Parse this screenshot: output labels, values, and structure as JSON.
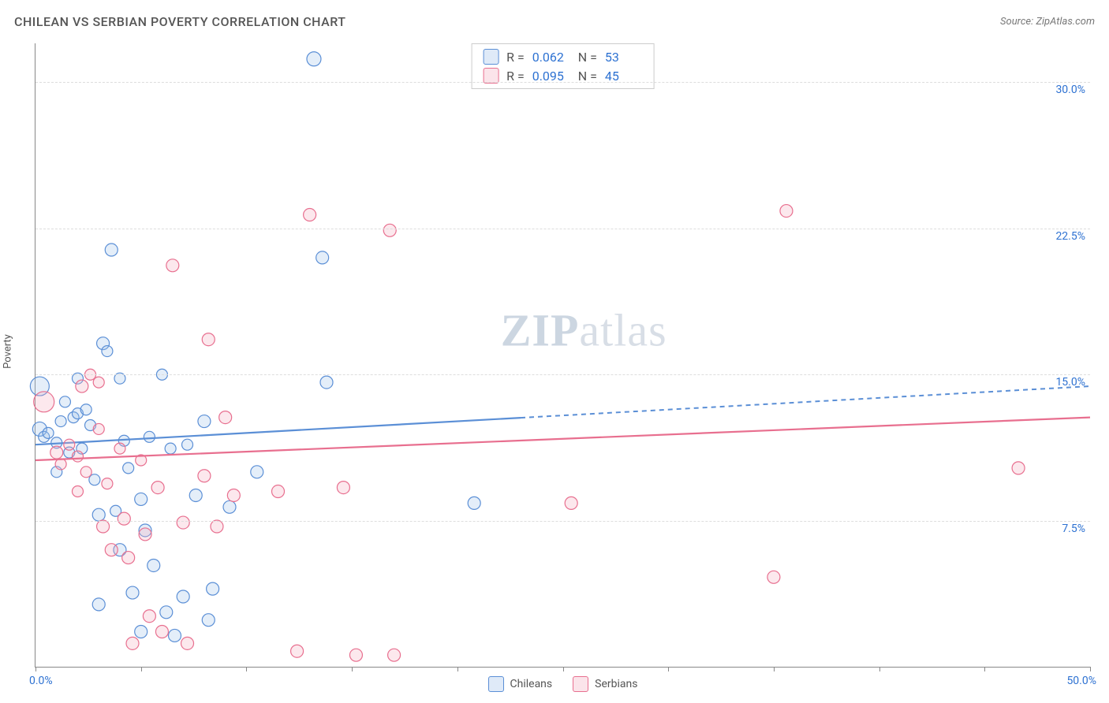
{
  "title": "CHILEAN VS SERBIAN POVERTY CORRELATION CHART",
  "source_prefix": "Source: ",
  "source_name": "ZipAtlas.com",
  "ylabel": "Poverty",
  "watermark_a": "ZIP",
  "watermark_b": "atlas",
  "chart": {
    "type": "scatter",
    "xlim": [
      0,
      50
    ],
    "ylim": [
      0,
      32
    ],
    "xtick_labels": {
      "min": "0.0%",
      "max": "50.0%"
    },
    "ytick_positions": [
      7.5,
      15.0,
      22.5,
      30.0
    ],
    "ytick_labels": [
      "7.5%",
      "15.0%",
      "22.5%",
      "30.0%"
    ],
    "xtick_positions": [
      0,
      5,
      10,
      15,
      20,
      25,
      30,
      35,
      40,
      45,
      50
    ],
    "background_color": "#ffffff",
    "grid_color": "#dddddd",
    "axis_color": "#888888",
    "series": [
      {
        "name": "Chileans",
        "label": "Chileans",
        "color_stroke": "#5b8fd6",
        "color_fill": "#9ec1ea",
        "R": "0.062",
        "N": "53",
        "trend": {
          "y_at_x0": 11.4,
          "y_at_xmax": 14.4,
          "solid_until_x": 23
        },
        "points": [
          {
            "x": 0.2,
            "y": 12.2,
            "r": 9
          },
          {
            "x": 0.2,
            "y": 14.4,
            "r": 12
          },
          {
            "x": 0.4,
            "y": 11.8,
            "r": 7
          },
          {
            "x": 0.6,
            "y": 12.0,
            "r": 7
          },
          {
            "x": 1.0,
            "y": 11.5,
            "r": 7
          },
          {
            "x": 1.2,
            "y": 12.6,
            "r": 7
          },
          {
            "x": 1.4,
            "y": 13.6,
            "r": 7
          },
          {
            "x": 1.6,
            "y": 11.0,
            "r": 7
          },
          {
            "x": 1.8,
            "y": 12.8,
            "r": 7
          },
          {
            "x": 2.0,
            "y": 13.0,
            "r": 7
          },
          {
            "x": 2.2,
            "y": 11.2,
            "r": 7
          },
          {
            "x": 2.4,
            "y": 13.2,
            "r": 7
          },
          {
            "x": 2.6,
            "y": 12.4,
            "r": 7
          },
          {
            "x": 3.0,
            "y": 7.8,
            "r": 8
          },
          {
            "x": 3.2,
            "y": 16.6,
            "r": 8
          },
          {
            "x": 3.4,
            "y": 16.2,
            "r": 7
          },
          {
            "x": 3.6,
            "y": 21.4,
            "r": 8
          },
          {
            "x": 4.0,
            "y": 6.0,
            "r": 8
          },
          {
            "x": 4.2,
            "y": 11.6,
            "r": 7
          },
          {
            "x": 4.4,
            "y": 10.2,
            "r": 7
          },
          {
            "x": 4.6,
            "y": 3.8,
            "r": 8
          },
          {
            "x": 3.0,
            "y": 3.2,
            "r": 8
          },
          {
            "x": 5.0,
            "y": 8.6,
            "r": 8
          },
          {
            "x": 5.2,
            "y": 7.0,
            "r": 8
          },
          {
            "x": 5.4,
            "y": 11.8,
            "r": 7
          },
          {
            "x": 5.6,
            "y": 5.2,
            "r": 8
          },
          {
            "x": 6.0,
            "y": 15.0,
            "r": 7
          },
          {
            "x": 6.2,
            "y": 2.8,
            "r": 8
          },
          {
            "x": 6.4,
            "y": 11.2,
            "r": 7
          },
          {
            "x": 6.6,
            "y": 1.6,
            "r": 8
          },
          {
            "x": 7.0,
            "y": 3.6,
            "r": 8
          },
          {
            "x": 7.2,
            "y": 11.4,
            "r": 7
          },
          {
            "x": 7.6,
            "y": 8.8,
            "r": 8
          },
          {
            "x": 8.0,
            "y": 12.6,
            "r": 8
          },
          {
            "x": 8.2,
            "y": 2.4,
            "r": 8
          },
          {
            "x": 8.4,
            "y": 4.0,
            "r": 8
          },
          {
            "x": 9.2,
            "y": 8.2,
            "r": 8
          },
          {
            "x": 10.5,
            "y": 10.0,
            "r": 8
          },
          {
            "x": 13.2,
            "y": 31.2,
            "r": 9
          },
          {
            "x": 13.6,
            "y": 21.0,
            "r": 8
          },
          {
            "x": 13.8,
            "y": 14.6,
            "r": 8
          },
          {
            "x": 20.8,
            "y": 8.4,
            "r": 8
          },
          {
            "x": 5.0,
            "y": 1.8,
            "r": 8
          },
          {
            "x": 4.0,
            "y": 14.8,
            "r": 7
          },
          {
            "x": 2.0,
            "y": 14.8,
            "r": 7
          },
          {
            "x": 2.8,
            "y": 9.6,
            "r": 7
          },
          {
            "x": 1.0,
            "y": 10.0,
            "r": 7
          },
          {
            "x": 3.8,
            "y": 8.0,
            "r": 7
          }
        ]
      },
      {
        "name": "Serbians",
        "label": "Serbians",
        "color_stroke": "#e86f8f",
        "color_fill": "#f3aebf",
        "R": "0.095",
        "N": "45",
        "trend": {
          "y_at_x0": 10.6,
          "y_at_xmax": 12.8,
          "solid_until_x": 50
        },
        "points": [
          {
            "x": 0.4,
            "y": 13.6,
            "r": 13
          },
          {
            "x": 1.0,
            "y": 11.0,
            "r": 8
          },
          {
            "x": 1.2,
            "y": 10.4,
            "r": 7
          },
          {
            "x": 1.6,
            "y": 11.4,
            "r": 7
          },
          {
            "x": 2.0,
            "y": 10.8,
            "r": 7
          },
          {
            "x": 2.2,
            "y": 14.4,
            "r": 8
          },
          {
            "x": 2.4,
            "y": 10.0,
            "r": 7
          },
          {
            "x": 2.6,
            "y": 15.0,
            "r": 7
          },
          {
            "x": 3.0,
            "y": 14.6,
            "r": 7
          },
          {
            "x": 3.2,
            "y": 7.2,
            "r": 8
          },
          {
            "x": 3.4,
            "y": 9.4,
            "r": 7
          },
          {
            "x": 3.6,
            "y": 6.0,
            "r": 8
          },
          {
            "x": 4.0,
            "y": 11.2,
            "r": 7
          },
          {
            "x": 4.2,
            "y": 7.6,
            "r": 8
          },
          {
            "x": 4.4,
            "y": 5.6,
            "r": 8
          },
          {
            "x": 4.6,
            "y": 1.2,
            "r": 8
          },
          {
            "x": 5.0,
            "y": 10.6,
            "r": 7
          },
          {
            "x": 5.2,
            "y": 6.8,
            "r": 8
          },
          {
            "x": 5.4,
            "y": 2.6,
            "r": 8
          },
          {
            "x": 5.8,
            "y": 9.2,
            "r": 8
          },
          {
            "x": 6.0,
            "y": 1.8,
            "r": 8
          },
          {
            "x": 6.5,
            "y": 20.6,
            "r": 8
          },
          {
            "x": 7.0,
            "y": 7.4,
            "r": 8
          },
          {
            "x": 7.2,
            "y": 1.2,
            "r": 8
          },
          {
            "x": 8.0,
            "y": 9.8,
            "r": 8
          },
          {
            "x": 8.2,
            "y": 16.8,
            "r": 8
          },
          {
            "x": 8.6,
            "y": 7.2,
            "r": 8
          },
          {
            "x": 9.0,
            "y": 12.8,
            "r": 8
          },
          {
            "x": 9.4,
            "y": 8.8,
            "r": 8
          },
          {
            "x": 11.5,
            "y": 9.0,
            "r": 8
          },
          {
            "x": 12.4,
            "y": 0.8,
            "r": 8
          },
          {
            "x": 13.0,
            "y": 23.2,
            "r": 8
          },
          {
            "x": 14.6,
            "y": 9.2,
            "r": 8
          },
          {
            "x": 15.2,
            "y": 0.6,
            "r": 8
          },
          {
            "x": 16.8,
            "y": 22.4,
            "r": 8
          },
          {
            "x": 17.0,
            "y": 0.6,
            "r": 8
          },
          {
            "x": 25.4,
            "y": 8.4,
            "r": 8
          },
          {
            "x": 35.6,
            "y": 23.4,
            "r": 8
          },
          {
            "x": 35.0,
            "y": 4.6,
            "r": 8
          },
          {
            "x": 46.6,
            "y": 10.2,
            "r": 8
          },
          {
            "x": 3.0,
            "y": 12.2,
            "r": 7
          },
          {
            "x": 2.0,
            "y": 9.0,
            "r": 7
          }
        ]
      }
    ]
  }
}
